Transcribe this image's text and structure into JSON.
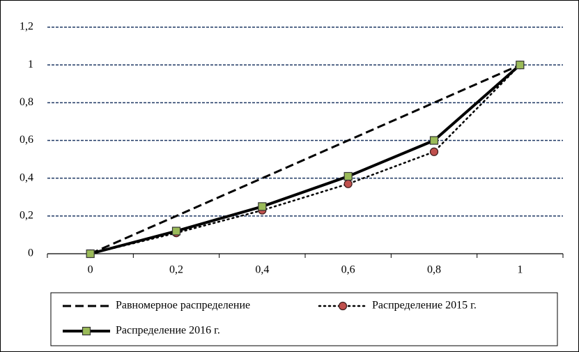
{
  "chart_data": {
    "type": "line",
    "categories": [
      "0",
      "0,2",
      "0,4",
      "0,6",
      "0,8",
      "1"
    ],
    "series": [
      {
        "name": "Равномерное распределение",
        "color": "#000000",
        "dash": "dashed",
        "values": [
          0,
          0.2,
          0.4,
          0.6,
          0.8,
          1
        ]
      },
      {
        "name": "Распределение 2015 г.",
        "color": "#000000",
        "dash": "dotted",
        "marker": "circle",
        "marker_color": "#c0504d",
        "values": [
          0,
          0.11,
          0.23,
          0.37,
          0.54,
          1
        ]
      },
      {
        "name": "Распределение 2016 г.",
        "color": "#000000",
        "dash": "solid",
        "marker": "square",
        "marker_color": "#9bbb59",
        "values": [
          0,
          0.12,
          0.25,
          0.41,
          0.6,
          1
        ]
      }
    ],
    "ylim": [
      0,
      1.2
    ],
    "yticks": [
      0,
      {
        "value": 0.2,
        "label": "0,2"
      },
      {
        "value": 0.4,
        "label": "0,4"
      },
      {
        "value": 0.6,
        "label": "0,6"
      },
      {
        "value": 0.8,
        "label": "0,8"
      },
      1,
      {
        "value": 1.2,
        "label": "1,2"
      }
    ],
    "grid": true,
    "grid_color": "#1f3864",
    "legend": "bottom"
  }
}
